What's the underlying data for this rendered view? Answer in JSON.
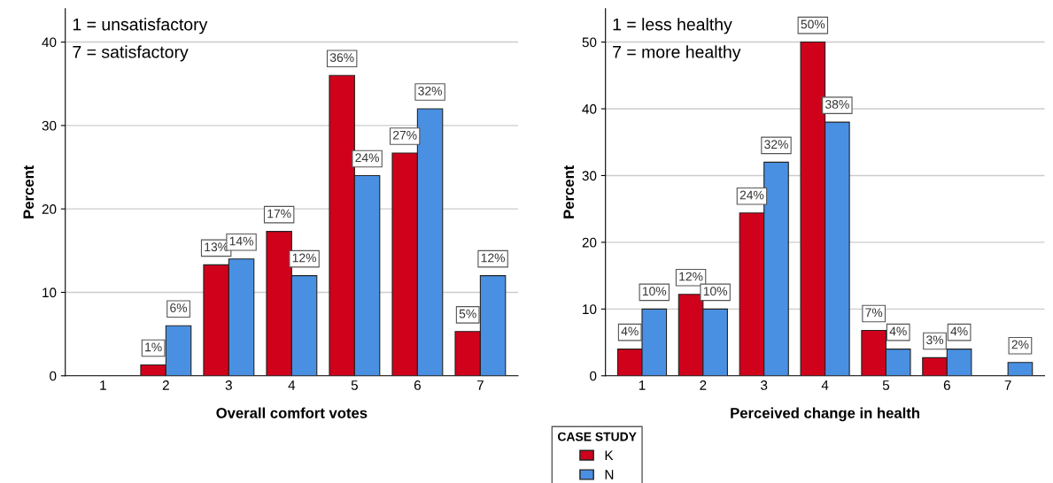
{
  "chart_data": [
    {
      "type": "bar",
      "xlabel": "Overall comfort votes",
      "ylabel": "Percent",
      "categories": [
        "1",
        "2",
        "3",
        "4",
        "5",
        "6",
        "7"
      ],
      "ylim": [
        0,
        44
      ],
      "yticks": [
        0,
        10,
        20,
        30,
        40
      ],
      "grid": "y",
      "legend": "bottom right",
      "legend_title": "CASE STUDY",
      "annotations": [
        "1 = unsatisfactory",
        "7 = satisfactory"
      ],
      "series": [
        {
          "name": "K",
          "color": "#d0021b",
          "values": [
            null,
            1.3,
            13.3,
            17.3,
            36,
            26.7,
            5.3
          ],
          "value_labels": [
            null,
            "1%",
            "13%",
            "17%",
            "36%",
            "27%",
            "5%"
          ]
        },
        {
          "name": "N",
          "color": "#4a90e2",
          "values": [
            null,
            6,
            14,
            12,
            24,
            32,
            12
          ],
          "value_labels": [
            null,
            "6%",
            "14%",
            "12%",
            "24%",
            "32%",
            "12%"
          ]
        }
      ]
    },
    {
      "type": "bar",
      "xlabel": "Perceived change in health",
      "ylabel": "Percent",
      "categories": [
        "1",
        "2",
        "3",
        "4",
        "5",
        "6",
        "7"
      ],
      "ylim": [
        0,
        55
      ],
      "yticks": [
        0,
        10,
        20,
        30,
        40,
        50
      ],
      "grid": "y",
      "annotations": [
        "1 = less healthy",
        "7 = more healthy"
      ],
      "series": [
        {
          "color": "#d0021b",
          "values": [
            4,
            12.2,
            24.4,
            50,
            6.8,
            2.7,
            null
          ],
          "value_labels": [
            "4%",
            "12%",
            "24%",
            "50%",
            "7%",
            "3%",
            null
          ]
        },
        {
          "color": "#4a90e2",
          "values": [
            10,
            10,
            32,
            38,
            4,
            4,
            2
          ],
          "value_labels": [
            "10%",
            "10%",
            "32%",
            "38%",
            "4%",
            "4%",
            "2%"
          ]
        }
      ]
    }
  ]
}
